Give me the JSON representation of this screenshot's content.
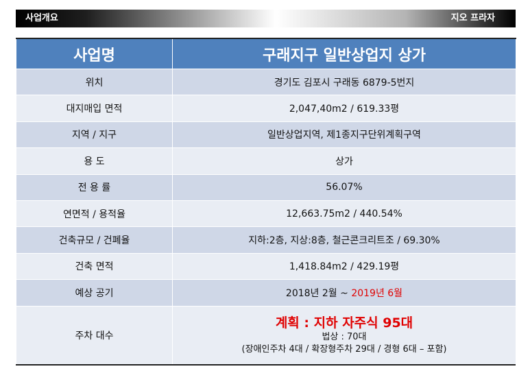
{
  "header": {
    "left_title": "사업개요",
    "right_title": "지오 프라자"
  },
  "table": {
    "head": {
      "label": "사업명",
      "value": "구래지구 일반상업지 상가"
    },
    "rows": [
      {
        "label": "위치",
        "value": "경기도 김포시 구래동 6879-5번지"
      },
      {
        "label": "대지매입 면적",
        "value": "2,047,40m2 / 619.33평"
      },
      {
        "label": "지역 / 지구",
        "value": "일반상업지역, 제1종지구단위계획구역"
      },
      {
        "label": "용 도",
        "value": "상가"
      },
      {
        "label": "전 용 률",
        "value": "56.07%"
      },
      {
        "label": "연면적 / 용적율",
        "value": "12,663.75m2 / 440.54%"
      },
      {
        "label": "건축규모 / 건폐율",
        "value": "지하:2층, 지상:8층, 철근콘크리트조 / 69.30%"
      },
      {
        "label": "건축 면적",
        "value": "1,418.84m2 / 429.19평"
      },
      {
        "label": "예상 공기",
        "value_prefix": "2018년 2월 ~ ",
        "value_highlight": "2019년 6월"
      },
      {
        "label": "주차 대수",
        "plan": "계획 : 지하 자주식 95대",
        "legal": "법상 : 70대",
        "detail": "(장애인주차 4대 / 확장형주차 29대 / 경형 6대 – 포함)"
      }
    ]
  },
  "colors": {
    "header_blue": "#4f81bd",
    "row_dark": "#cfd7e7",
    "row_light": "#e9edf4",
    "highlight_red": "#e00000"
  }
}
